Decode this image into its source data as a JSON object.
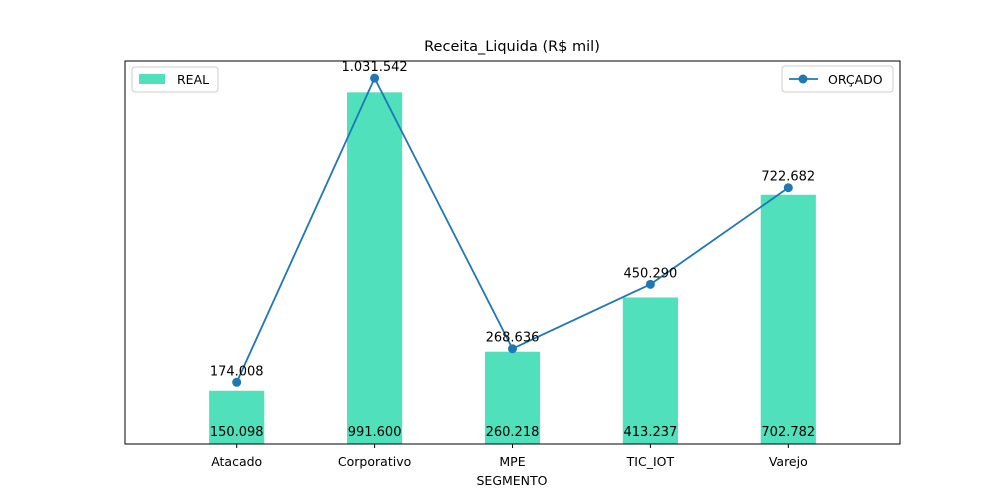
{
  "chart_data": {
    "type": "bar",
    "title": "Receita_Liquida (R$ mil)",
    "xlabel": "SEGMENTO",
    "ylabel": "",
    "ylim": [
      0,
      1080000
    ],
    "grid": false,
    "categories": [
      "Atacado",
      "Corporativo",
      "MPE",
      "TIC_IOT",
      "Varejo"
    ],
    "series": [
      {
        "name": "REAL",
        "type": "bar",
        "values": [
          150098,
          991600,
          260218,
          413237,
          702782
        ],
        "labels": [
          "150.098",
          "991.600",
          "260.218",
          "413.237",
          "702.782"
        ],
        "color": "#50e0bc",
        "legend_position": "top-left"
      },
      {
        "name": "ORÇADO",
        "type": "line",
        "values": [
          174008,
          1031542,
          268636,
          450290,
          722682
        ],
        "labels": [
          "174.008",
          "1.031.542",
          "268.636",
          "450.290",
          "722.682"
        ],
        "color": "#1f77b4",
        "marker": "circle",
        "legend_position": "top-right"
      }
    ]
  }
}
